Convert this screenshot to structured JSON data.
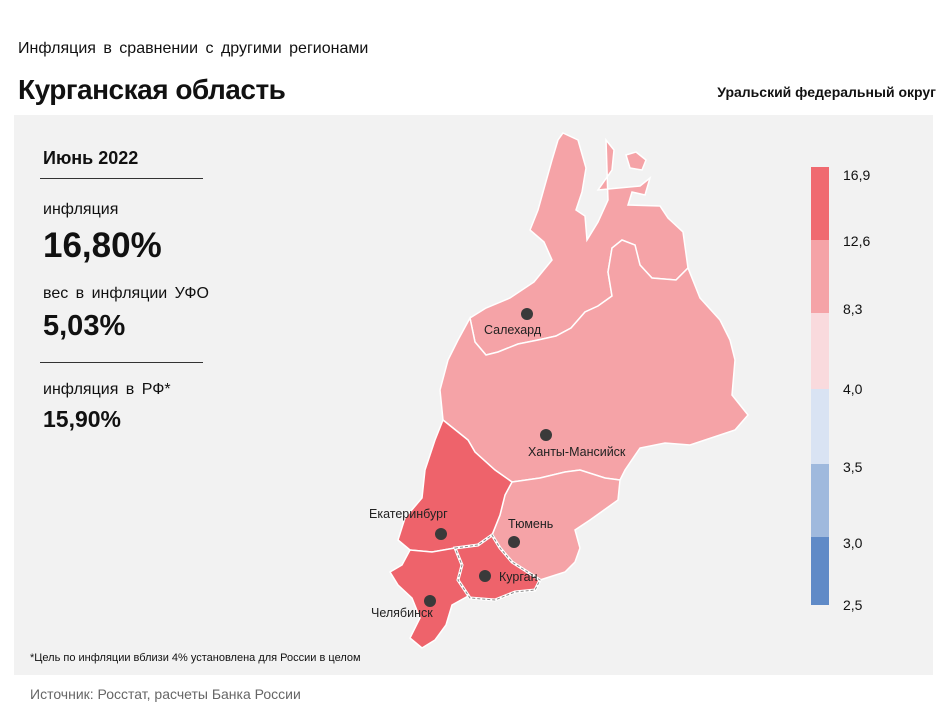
{
  "header": {
    "subtitle": "Инфляция в сравнении с другими регионами",
    "title": "Курганская область",
    "district": "Уральский федеральный округ"
  },
  "stats": {
    "period": "Июнь 2022",
    "inflation_label": "инфляция",
    "inflation_value": "16,80%",
    "weight_label": "вес в инфляции УФО",
    "weight_value": "5,03%",
    "rf_label": "инфляция в РФ*",
    "rf_value": "15,90%"
  },
  "map": {
    "regions": [
      {
        "name": "ЯНАО",
        "city": "Салехард",
        "color": "#f5a3a7"
      },
      {
        "name": "ХМАО",
        "city": "Ханты-Мансийск",
        "color": "#f5a3a7"
      },
      {
        "name": "Тюменская область",
        "city": "Тюмень",
        "color": "#f5a3a7"
      },
      {
        "name": "Свердловская область",
        "city": "Екатеринбург",
        "color": "#ee636b"
      },
      {
        "name": "Челябинская область",
        "city": "Челябинск",
        "color": "#ee636b"
      },
      {
        "name": "Курганская область",
        "city": "Курган",
        "color": "#ee636b",
        "highlighted": true
      }
    ]
  },
  "legend": {
    "ticks": [
      "16,9",
      "12,6",
      "8,3",
      "4,0",
      "3,5",
      "3,0",
      "2,5"
    ],
    "colors": [
      "#f06a70",
      "#f5a3a7",
      "#f9dadd",
      "#d9e3f3",
      "#9fb9dd",
      "#5f8ac7"
    ]
  },
  "footnote": "*Цель по инфляции вблизи 4% установлена для России в целом",
  "source": "Источник: Росстат, расчеты Банка России"
}
